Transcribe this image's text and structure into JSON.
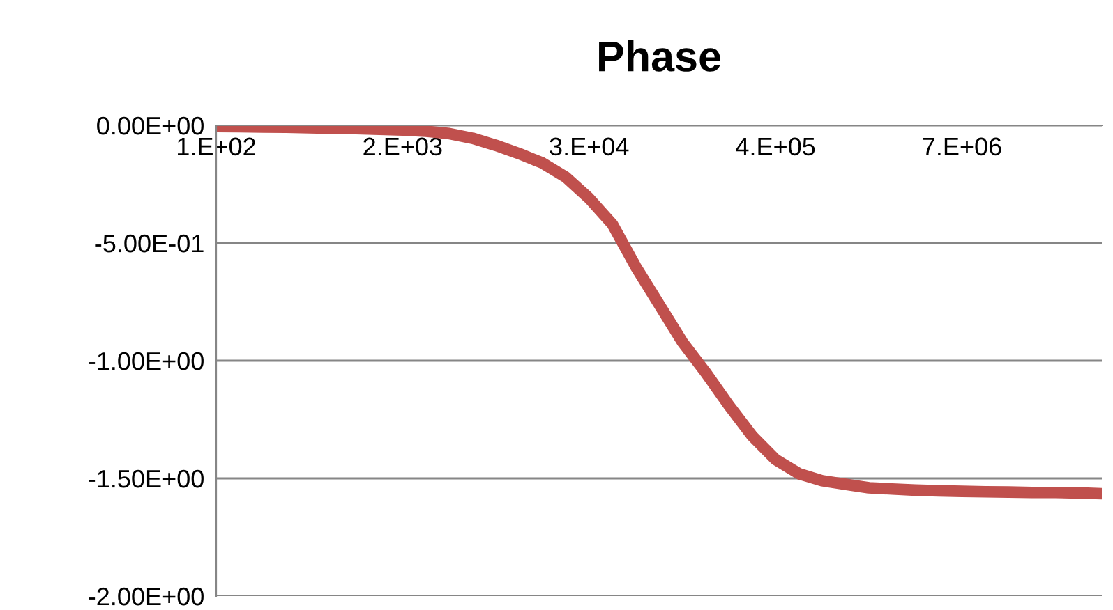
{
  "chart_data": {
    "type": "line",
    "title": "Phase",
    "categories": [
      "1.E+02",
      null,
      null,
      null,
      null,
      null,
      null,
      null,
      "2.E+03",
      null,
      null,
      null,
      null,
      null,
      null,
      null,
      "3.E+04",
      null,
      null,
      null,
      null,
      null,
      null,
      null,
      "4.E+05",
      null,
      null,
      null,
      null,
      null,
      null,
      null,
      "7.E+06",
      null,
      null,
      null,
      null,
      null,
      null
    ],
    "series": [
      {
        "color": "#c0504d",
        "values": [
          -0.005,
          -0.006,
          -0.007,
          -0.008,
          -0.01,
          -0.012,
          -0.014,
          -0.017,
          -0.02,
          -0.025,
          -0.035,
          -0.055,
          -0.085,
          -0.12,
          -0.16,
          -0.22,
          -0.31,
          -0.42,
          -0.6,
          -0.76,
          -0.92,
          -1.05,
          -1.19,
          -1.32,
          -1.42,
          -1.48,
          -1.51,
          -1.525,
          -1.54,
          -1.545,
          -1.55,
          -1.553,
          -1.555,
          -1.557,
          -1.558,
          -1.56,
          -1.56,
          -1.562,
          -1.565
        ]
      }
    ],
    "ylim": [
      -2,
      0
    ],
    "yticks": [
      {
        "value": 0,
        "label": "0.00E+00"
      },
      {
        "value": -0.5,
        "label": "-5.00E-01"
      },
      {
        "value": -1,
        "label": "-1.00E+00"
      },
      {
        "value": -1.5,
        "label": "-1.50E+00"
      },
      {
        "value": -2,
        "label": "-2.00E+00"
      }
    ],
    "grid": "y",
    "marker": "none",
    "line_style": "solid"
  }
}
